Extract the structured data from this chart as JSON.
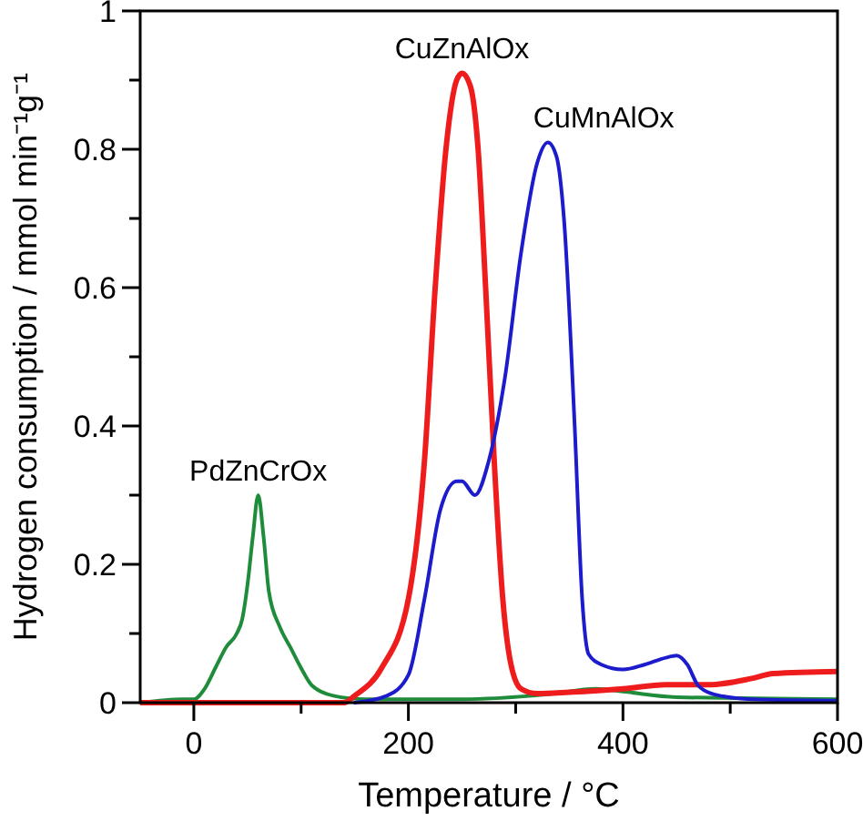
{
  "chart_data": {
    "type": "line",
    "xlabel": "Temperature / °C",
    "ylabel": "Hydrogen consumption / mmol min⁻¹g⁻¹",
    "xlim": [
      -50,
      600
    ],
    "ylim": [
      0,
      1
    ],
    "xticks": [
      0,
      {
        "value": 100,
        "label": null
      },
      200,
      {
        "value": 300,
        "label": null
      },
      400,
      {
        "value": 500,
        "label": null
      },
      600
    ],
    "yticks": [
      0,
      {
        "value": 0.1,
        "label": null
      },
      0.2,
      {
        "value": 0.3,
        "label": null
      },
      0.4,
      {
        "value": 0.5,
        "label": null
      },
      0.6,
      {
        "value": 0.7,
        "label": null
      },
      0.8,
      {
        "value": 0.9,
        "label": null
      },
      1
    ],
    "grid": false,
    "legend": false,
    "marker": "none",
    "line_style": "solid",
    "series": [
      {
        "name": "PdZnCrOx",
        "color": "#1e8c3a",
        "x": [
          -50,
          -10,
          0,
          10,
          20,
          30,
          40,
          45,
          50,
          55,
          60,
          65,
          70,
          80,
          90,
          100,
          110,
          130,
          160,
          250,
          330,
          375,
          400,
          450,
          600
        ],
        "values": [
          0,
          0.005,
          0.005,
          0.02,
          0.05,
          0.08,
          0.1,
          0.12,
          0.17,
          0.24,
          0.3,
          0.24,
          0.16,
          0.11,
          0.08,
          0.05,
          0.025,
          0.01,
          0.005,
          0.005,
          0.012,
          0.02,
          0.016,
          0.008,
          0.005
        ]
      },
      {
        "name": "CuZnAlOx",
        "color": "#ee1c1c",
        "x": [
          -50,
          140,
          150,
          175,
          200,
          215,
          225,
          235,
          245,
          250,
          258,
          265,
          272,
          280,
          288,
          295,
          305,
          320,
          350,
          400,
          440,
          480,
          520,
          540,
          600
        ],
        "values": [
          0,
          0,
          0.01,
          0.05,
          0.15,
          0.35,
          0.6,
          0.8,
          0.9,
          0.91,
          0.89,
          0.8,
          0.6,
          0.35,
          0.15,
          0.06,
          0.02,
          0.013,
          0.015,
          0.02,
          0.026,
          0.026,
          0.035,
          0.042,
          0.045
        ]
      },
      {
        "name": "CuMnAlOx",
        "color": "#1c1ccc",
        "x": [
          150,
          180,
          200,
          215,
          230,
          245,
          250,
          262,
          275,
          290,
          305,
          320,
          330,
          338,
          345,
          355,
          362,
          368,
          380,
          400,
          420,
          440,
          450,
          460,
          470,
          485,
          520,
          600
        ],
        "values": [
          0,
          0.01,
          0.04,
          0.15,
          0.28,
          0.32,
          0.32,
          0.3,
          0.35,
          0.47,
          0.65,
          0.78,
          0.81,
          0.79,
          0.7,
          0.4,
          0.15,
          0.07,
          0.055,
          0.048,
          0.055,
          0.065,
          0.068,
          0.055,
          0.025,
          0.012,
          0.005,
          0.003
        ]
      }
    ]
  }
}
